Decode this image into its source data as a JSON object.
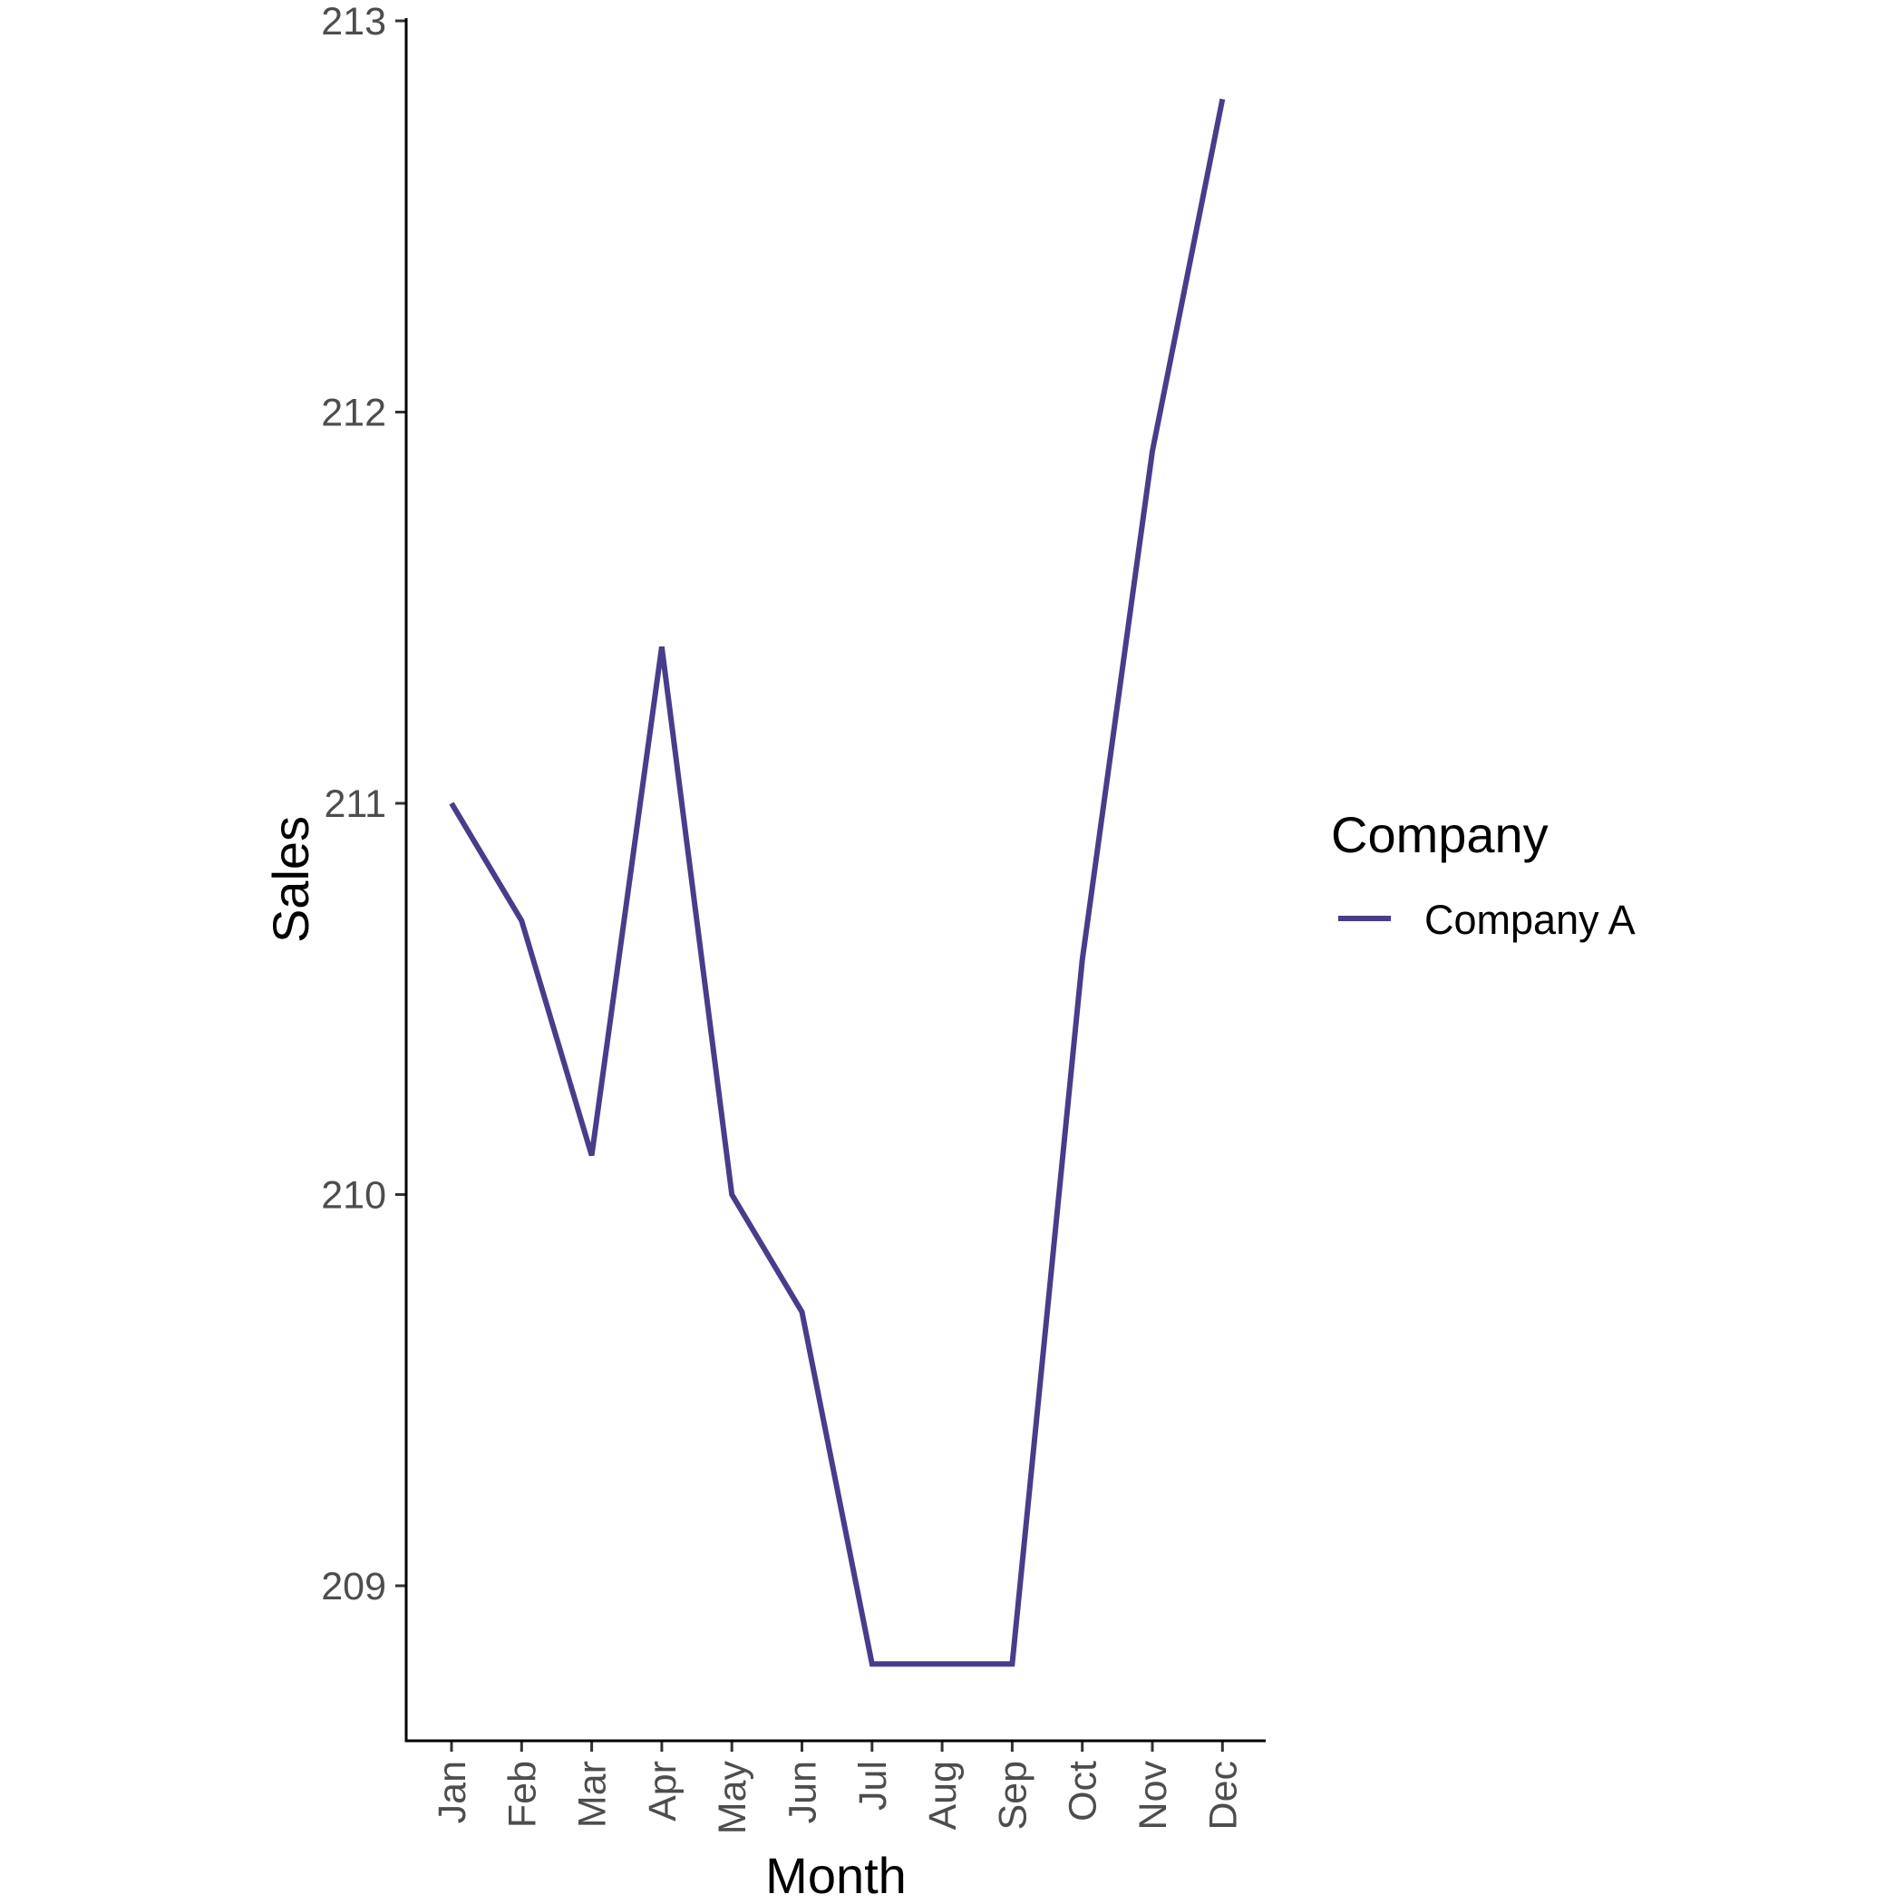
{
  "chart_data": {
    "type": "line",
    "categories": [
      "Jan",
      "Feb",
      "Mar",
      "Apr",
      "May",
      "Jun",
      "Jul",
      "Aug",
      "Sep",
      "Oct",
      "Nov",
      "Dec"
    ],
    "series": [
      {
        "name": "Company A",
        "values": [
          211.0,
          210.7,
          210.1,
          211.4,
          210.0,
          209.7,
          208.8,
          208.8,
          208.8,
          210.6,
          211.9,
          212.8
        ],
        "color": "#483D8B"
      }
    ],
    "xlabel": "Month",
    "ylabel": "Sales",
    "ylim": [
      208.6,
      213.0
    ],
    "yticks": [
      209,
      210,
      211,
      212,
      213
    ],
    "legend_title": "Company",
    "legend_position": "right",
    "grid": false
  }
}
